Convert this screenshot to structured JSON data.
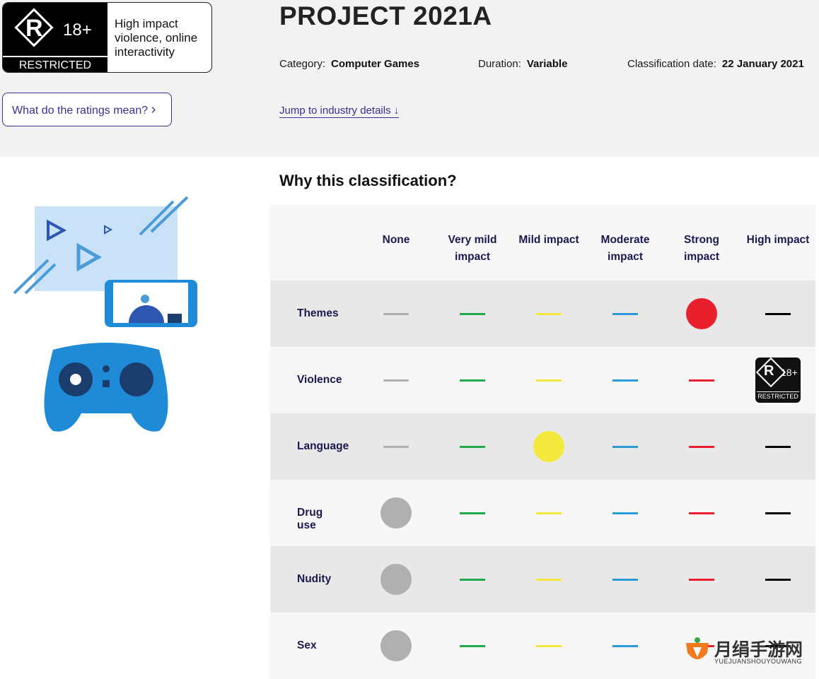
{
  "badge": {
    "letter": "R",
    "age": "18+",
    "label": "RESTRICTED",
    "description": "High impact violence, online interactivity"
  },
  "button": "What do the ratings mean?",
  "header": {
    "title": "PROJECT 2021A",
    "meta": [
      {
        "label": "Category:",
        "value": "Computer Games"
      },
      {
        "label": "Duration:",
        "value": "Variable"
      },
      {
        "label": "Classification date:",
        "value": "22 January 2021"
      }
    ],
    "link": "Jump to industry details ↓"
  },
  "section": {
    "title": "Why this classification?"
  },
  "table": {
    "columns": [
      {
        "label": "None",
        "color": "#b0b0b0"
      },
      {
        "label": "Very mild impact",
        "color": "#1faa4b"
      },
      {
        "label": "Mild impact",
        "color": "#f5e83c"
      },
      {
        "label": "Moderate impact",
        "color": "#2a9bd6"
      },
      {
        "label": "Strong impact",
        "color": "#e8202e"
      },
      {
        "label": "High impact",
        "color": "#000000"
      }
    ],
    "rows": [
      {
        "label": "Themes",
        "rating": 4
      },
      {
        "label": "Violence",
        "rating": 5
      },
      {
        "label": "Language",
        "rating": 2
      },
      {
        "label": "Drug use",
        "rating": 0
      },
      {
        "label": "Nudity",
        "rating": 0
      },
      {
        "label": "Sex",
        "rating": 0
      }
    ]
  },
  "watermark": {
    "name": "月绢手游网",
    "pinyin": "YUEJUANSHOUYOUWANG"
  }
}
